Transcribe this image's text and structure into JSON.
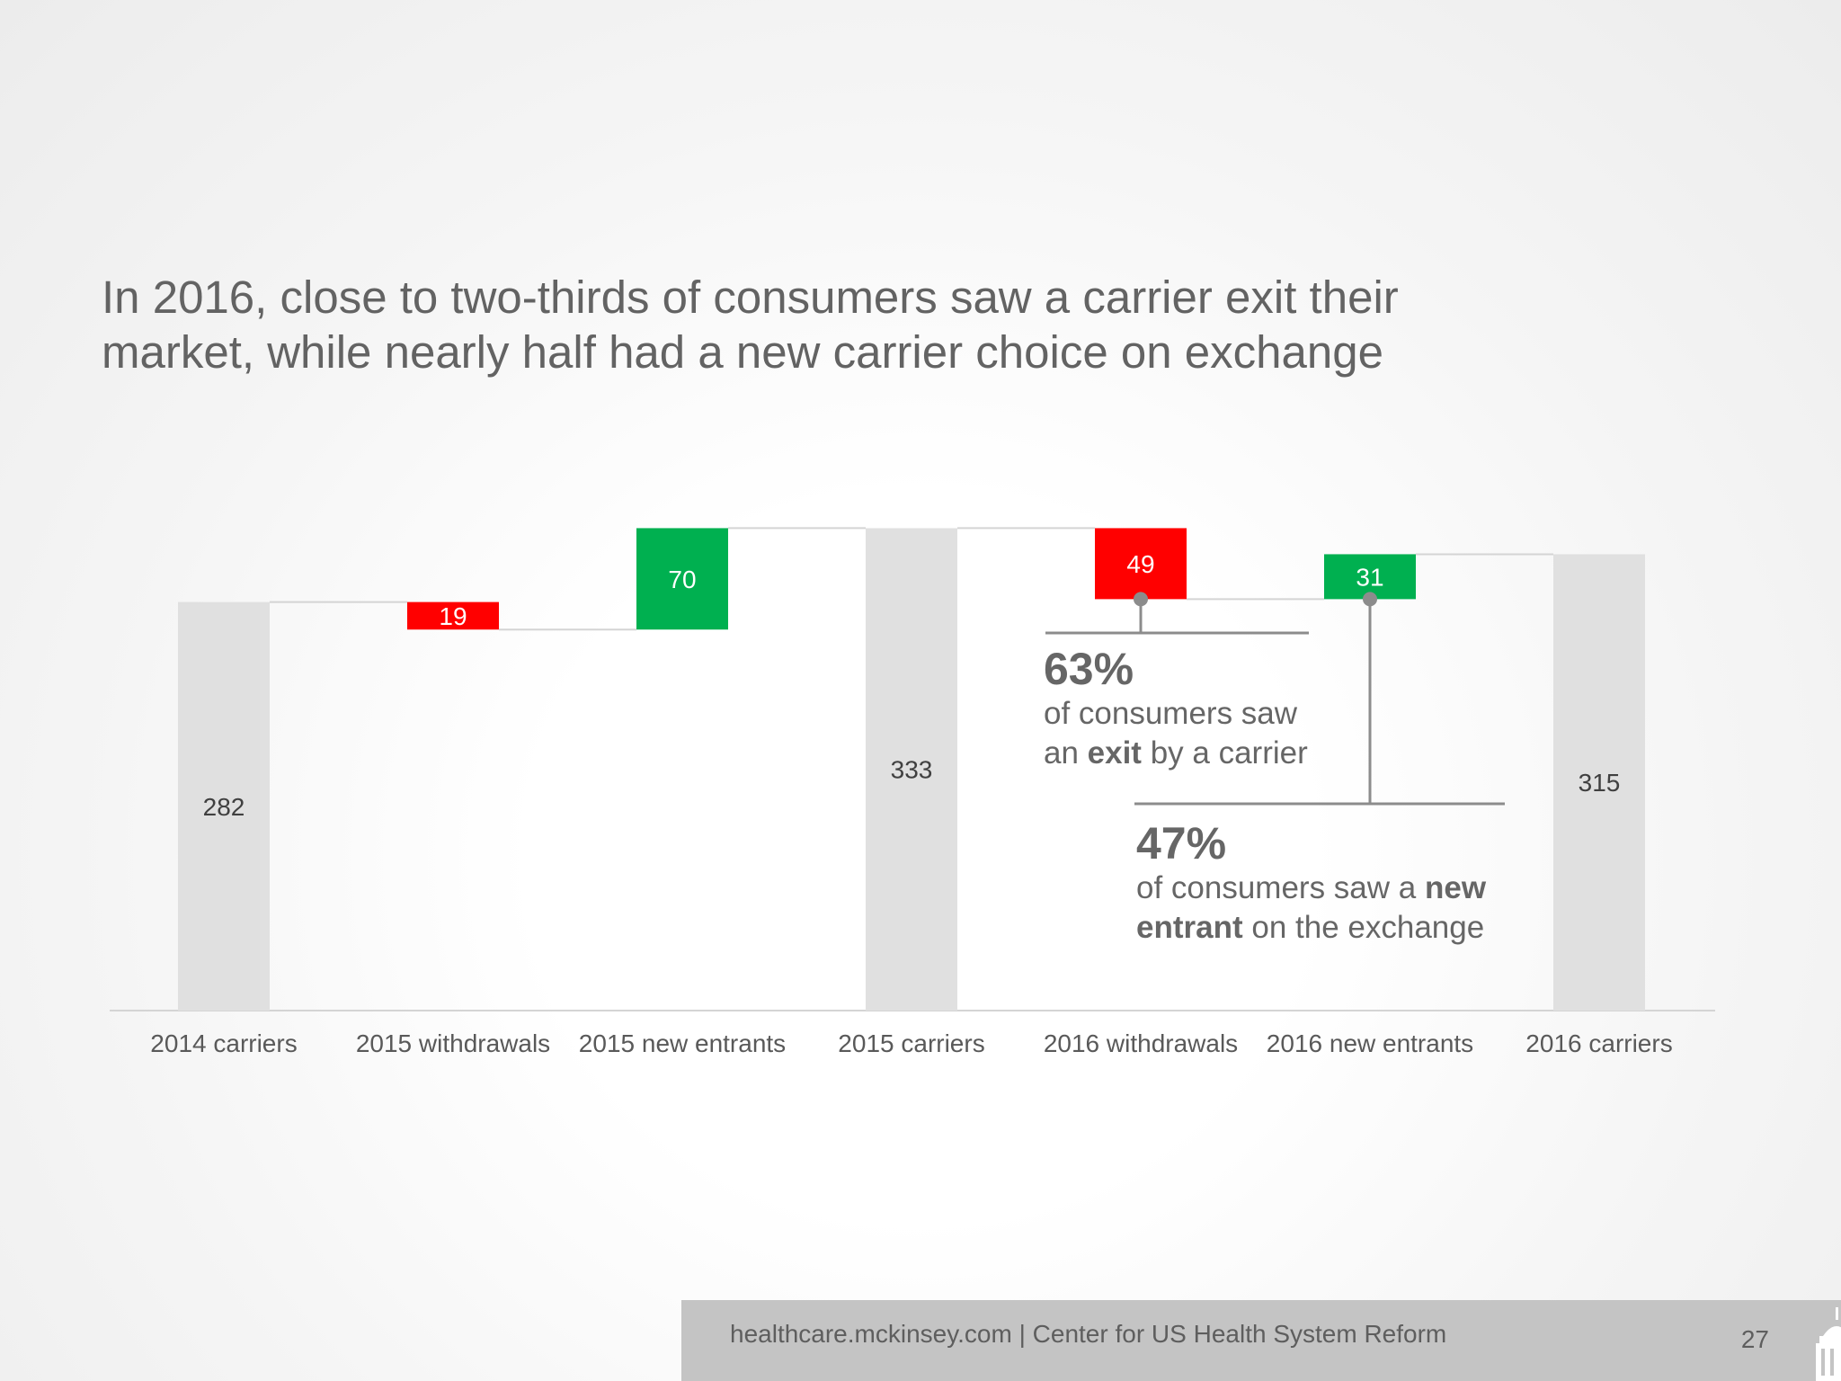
{
  "title": {
    "line1": "In 2016, close to two-thirds of consumers saw a carrier exit their",
    "line2": "market, while nearly half had a new carrier choice on exchange"
  },
  "chart_data": {
    "type": "bar",
    "subtype": "waterfall",
    "categories": [
      "2014 carriers",
      "2015 withdrawals",
      "2015 new entrants",
      "2015 carriers",
      "2016 withdrawals",
      "2016 new entrants",
      "2016 carriers"
    ],
    "steps": [
      {
        "category": "2014 carriers",
        "kind": "total",
        "value": 282,
        "label": "282"
      },
      {
        "category": "2015 withdrawals",
        "kind": "decrease",
        "value": 19,
        "label": "19"
      },
      {
        "category": "2015 new entrants",
        "kind": "increase",
        "value": 70,
        "label": "70"
      },
      {
        "category": "2015 carriers",
        "kind": "total",
        "value": 333,
        "label": "333"
      },
      {
        "category": "2016 withdrawals",
        "kind": "decrease",
        "value": 49,
        "label": "49"
      },
      {
        "category": "2016 new entrants",
        "kind": "increase",
        "value": 31,
        "label": "31"
      },
      {
        "category": "2016 carriers",
        "kind": "total",
        "value": 315,
        "label": "315"
      }
    ],
    "ylim": [
      0,
      340
    ],
    "colors": {
      "total": "#e0e0e0",
      "decrease": "#ff0000",
      "increase": "#00b050",
      "connector": "#d4d4d4",
      "axis": "#d4d4d4",
      "callout_line": "#8c8c8c",
      "category_text": "#595959",
      "total_text": "#404040",
      "delta_text": "#ffffff"
    },
    "title": "",
    "xlabel": "",
    "ylabel": "",
    "grid": false,
    "legend": "none"
  },
  "callouts": [
    {
      "pct": "63%",
      "pre": "of consumers saw",
      "mid_pre": "an ",
      "bold": "exit",
      "post": " by a carrier",
      "anchor": "2016 withdrawals"
    },
    {
      "pct": "47%",
      "pre": "of consumers saw a ",
      "bold": "new",
      "bold2": "entrant",
      "post": " on the exchange",
      "anchor": "2016 new entrants"
    }
  ],
  "footer": {
    "text": "healthcare.mckinsey.com | Center for US Health System Reform",
    "page": "27",
    "icon": "capitol-building-icon"
  }
}
